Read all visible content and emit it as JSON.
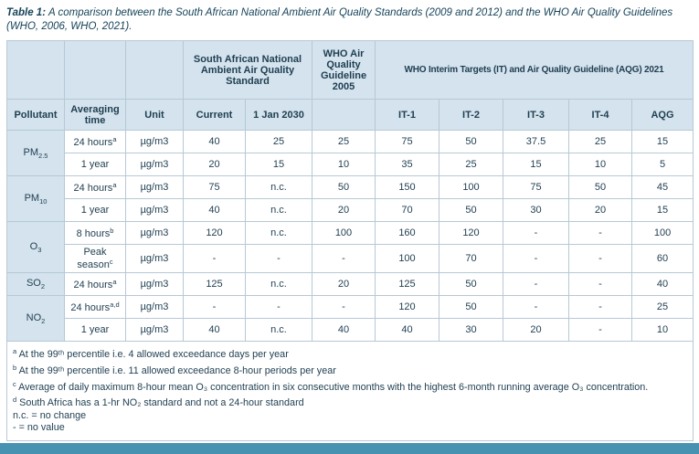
{
  "caption": {
    "label": "Table 1:",
    "text": "A comparison between the South African National Ambient Air Quality Standards (2009 and 2012) and the WHO Air Quality Guidelines (WHO, 2006, WHO, 2021)."
  },
  "colors": {
    "header_bg": "#d4e3ed",
    "border": "#b6c9d6",
    "text": "#1e3e50",
    "footer_bar": "#4792b0"
  },
  "table": {
    "header": {
      "pollutant": "Pollutant",
      "averaging_time": "Averaging time",
      "unit": "Unit",
      "sa_group": "South African National Ambient Air Quality Standard",
      "sa_cols": [
        "Current",
        "1 Jan 2030"
      ],
      "who2005_group": "WHO Air Quality Guideline 2005",
      "who2021_group": "WHO Interim Targets (IT) and Air Quality Guideline (AQG) 2021",
      "who2021_cols": [
        "IT-1",
        "IT-2",
        "IT-3",
        "IT-4",
        "AQG"
      ]
    },
    "groups": [
      {
        "pollutant": {
          "base": "PM",
          "sub": "2.5"
        },
        "rows": [
          {
            "avg": "24 hours",
            "avg_sup": "a",
            "unit": "µg/m3",
            "values": [
              "40",
              "25",
              "25",
              "75",
              "50",
              "37.5",
              "25",
              "15"
            ]
          },
          {
            "avg": "1 year",
            "avg_sup": "",
            "unit": "µg/m3",
            "values": [
              "20",
              "15",
              "10",
              "35",
              "25",
              "15",
              "10",
              "5"
            ]
          }
        ]
      },
      {
        "pollutant": {
          "base": "PM",
          "sub": "10"
        },
        "rows": [
          {
            "avg": "24 hours",
            "avg_sup": "a",
            "unit": "µg/m3",
            "values": [
              "75",
              "n.c.",
              "50",
              "150",
              "100",
              "75",
              "50",
              "45"
            ]
          },
          {
            "avg": "1 year",
            "avg_sup": "",
            "unit": "µg/m3",
            "values": [
              "40",
              "n.c.",
              "20",
              "70",
              "50",
              "30",
              "20",
              "15"
            ]
          }
        ]
      },
      {
        "pollutant": {
          "base": "O",
          "sub": "3"
        },
        "rows": [
          {
            "avg": "8 hours",
            "avg_sup": "b",
            "unit": "µg/m3",
            "values": [
              "120",
              "n.c.",
              "100",
              "160",
              "120",
              "-",
              "-",
              "100"
            ]
          },
          {
            "avg": "Peak season",
            "avg_sup": "c",
            "unit": "µg/m3",
            "values": [
              "-",
              "-",
              "-",
              "100",
              "70",
              "-",
              "-",
              "60"
            ]
          }
        ]
      },
      {
        "pollutant": {
          "base": "SO",
          "sub": "2"
        },
        "rows": [
          {
            "avg": "24 hours",
            "avg_sup": "a",
            "unit": "µg/m3",
            "values": [
              "125",
              "n.c.",
              "20",
              "125",
              "50",
              "-",
              "-",
              "40"
            ]
          }
        ]
      },
      {
        "pollutant": {
          "base": "NO",
          "sub": "2"
        },
        "rows": [
          {
            "avg": "24 hours",
            "avg_sup": "a,d",
            "unit": "µg/m3",
            "values": [
              "-",
              "-",
              "-",
              "120",
              "50",
              "-",
              "-",
              "25"
            ]
          },
          {
            "avg": "1 year",
            "avg_sup": "",
            "unit": "µg/m3",
            "values": [
              "40",
              "n.c.",
              "40",
              "40",
              "30",
              "20",
              "-",
              "10"
            ]
          }
        ]
      }
    ],
    "footnotes": [
      {
        "sup": "a",
        "text": "At the 99ᵗʰ percentile i.e. 4 allowed exceedance days per year"
      },
      {
        "sup": "b",
        "text": "At the 99ᵗʰ percentile i.e. 11 allowed exceedance 8-hour periods per year"
      },
      {
        "sup": "c",
        "text": "Average of daily maximum 8-hour mean O₃ concentration in six consecutive months with the highest 6-month running average O₃ concentration."
      },
      {
        "sup": "d",
        "text": "South Africa has a 1-hr NO₂ standard and not a 24-hour standard"
      },
      {
        "sup": "",
        "text": "n.c. = no change"
      },
      {
        "sup": "",
        "text": "- = no value"
      }
    ]
  }
}
